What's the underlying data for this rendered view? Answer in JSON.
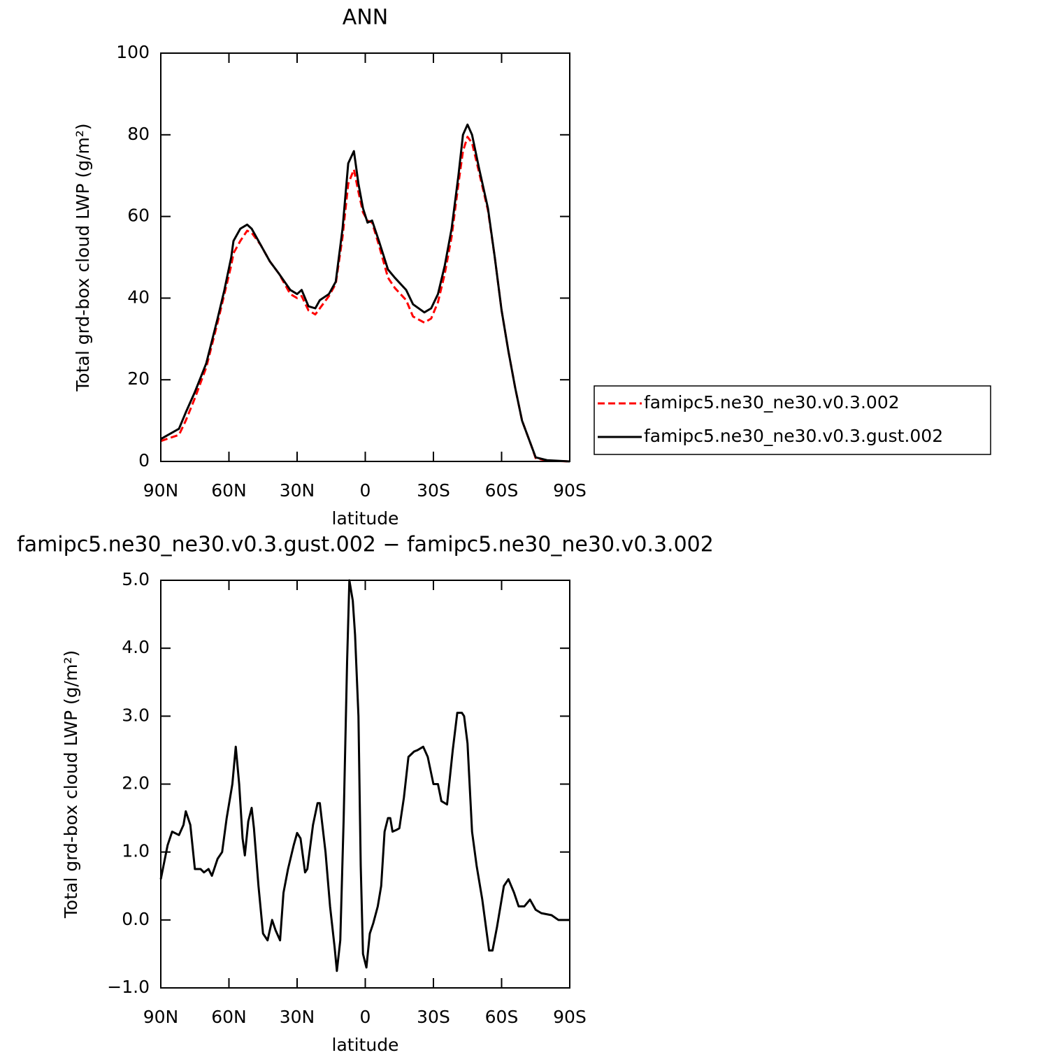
{
  "chart_data": [
    {
      "type": "line",
      "title": "ANN",
      "xlabel": "latitude",
      "ylabel": "Total grd-box cloud LWP (g/m²)",
      "x": [
        90,
        82,
        79,
        75,
        70,
        65,
        62,
        59,
        58,
        55,
        52,
        50,
        46,
        42,
        38,
        33,
        30,
        28,
        25,
        22,
        20,
        16,
        13,
        10,
        7.5,
        5,
        3,
        1,
        -1,
        -3,
        -6,
        -10,
        -13,
        -18,
        -21,
        -26,
        -29,
        -32,
        -35,
        -38,
        -41,
        -43,
        -45,
        -47,
        -50,
        -54,
        -57,
        -60,
        -63,
        -66,
        -69,
        -73,
        -75,
        -80,
        -90
      ],
      "series": [
        {
          "name": "famipc5.ne30_ne30.v0.3.002",
          "color": "#ff0000",
          "linestyle": "dashed",
          "values": [
            5,
            6.5,
            10,
            15.5,
            23,
            34,
            41,
            48,
            51,
            54,
            56.5,
            56,
            53,
            49,
            46,
            41,
            40,
            40.5,
            37,
            36,
            37.5,
            40.5,
            43.5,
            55,
            68,
            71.5,
            66,
            61,
            59,
            58.5,
            53,
            45,
            42.5,
            39.5,
            35.5,
            34,
            35,
            39,
            46,
            55,
            68,
            76,
            79.5,
            78,
            71,
            61.5,
            50,
            37,
            27,
            18,
            10,
            4,
            0.8,
            0.2,
            0
          ]
        },
        {
          "name": "famipc5.ne30_ne30.v0.3.gust.002",
          "color": "#000000",
          "linestyle": "solid",
          "values": [
            5.5,
            8,
            12,
            17,
            24,
            35,
            42,
            50,
            54,
            57,
            58,
            57,
            53,
            49,
            46,
            42,
            41,
            42,
            38,
            37.5,
            39.5,
            41,
            44,
            57,
            73,
            76,
            68,
            62,
            58.5,
            59,
            54,
            47,
            45,
            42,
            38.5,
            36.5,
            37.5,
            41,
            48,
            57,
            70,
            80,
            82.5,
            80,
            72,
            62,
            50,
            37,
            27,
            18,
            10,
            4,
            1,
            0.3,
            0
          ]
        }
      ],
      "xlim": [
        90,
        -90
      ],
      "xticks": [
        {
          "value": 90,
          "label": "90N"
        },
        {
          "value": 60,
          "label": "60N"
        },
        {
          "value": 30,
          "label": "30N"
        },
        0,
        {
          "value": -30,
          "label": "30S"
        },
        {
          "value": -60,
          "label": "60S"
        },
        {
          "value": -90,
          "label": "90S"
        }
      ],
      "ylim": [
        0,
        100
      ],
      "yticks": [
        0,
        20,
        40,
        60,
        80,
        100
      ],
      "legend": "right"
    },
    {
      "type": "line",
      "title": "famipc5.ne30_ne30.v0.3.gust.002 − famipc5.ne30_ne30.v0.3.002",
      "xlabel": "latitude",
      "ylabel": "Total grd-box cloud LWP (g/m²)",
      "x": [
        90,
        87,
        85,
        82,
        80,
        79,
        77,
        75,
        72.5,
        71,
        69,
        67.5,
        65,
        63,
        61,
        58.5,
        57,
        55.5,
        54,
        53,
        51.5,
        50,
        49,
        47,
        45,
        43,
        41,
        39.5,
        37.5,
        36,
        34,
        31.5,
        30,
        28.5,
        26.5,
        25.5,
        23,
        21,
        20,
        17.5,
        15.5,
        13.5,
        12.5,
        11,
        9.5,
        8,
        7,
        5.5,
        4.5,
        3,
        2,
        1,
        -0.5,
        -2,
        -3.5,
        -5.5,
        -7,
        -8.5,
        -10,
        -11,
        -12,
        -14,
        -15,
        -17,
        -19,
        -21.5,
        -23,
        -25.5,
        -27.5,
        -30,
        -32,
        -33.5,
        -36,
        -38.5,
        -40.5,
        -42.5,
        -43.5,
        -45,
        -47,
        -49,
        -51.5,
        -54.5,
        -56,
        -58,
        -61,
        -63,
        -65.5,
        -67.5,
        -70,
        -72.5,
        -75,
        -77.5,
        -82,
        -85,
        -90
      ],
      "series": [
        {
          "color": "#000000",
          "linestyle": "solid",
          "values": [
            0.6,
            1.1,
            1.3,
            1.25,
            1.4,
            1.6,
            1.4,
            0.75,
            0.75,
            0.7,
            0.75,
            0.65,
            0.9,
            1.0,
            1.5,
            2.0,
            2.55,
            2.0,
            1.2,
            0.95,
            1.45,
            1.65,
            1.35,
            0.5,
            -0.2,
            -0.3,
            0.0,
            -0.15,
            -0.3,
            0.4,
            0.75,
            1.1,
            1.28,
            1.2,
            0.7,
            0.75,
            1.4,
            1.72,
            1.72,
            1.0,
            0.2,
            -0.4,
            -0.75,
            -0.3,
            1.5,
            3.8,
            5.0,
            4.7,
            4.2,
            3.0,
            0.8,
            -0.5,
            -0.7,
            -0.2,
            -0.05,
            0.2,
            0.5,
            1.3,
            1.5,
            1.5,
            1.3,
            1.33,
            1.35,
            1.8,
            2.4,
            2.48,
            2.5,
            2.55,
            2.4,
            2.0,
            2.0,
            1.75,
            1.7,
            2.5,
            3.05,
            3.05,
            3.0,
            2.6,
            1.3,
            0.8,
            0.3,
            -0.45,
            -0.45,
            -0.1,
            0.5,
            0.6,
            0.4,
            0.2,
            0.2,
            0.3,
            0.15,
            0.1,
            0.07,
            0.0,
            0.0
          ]
        }
      ],
      "xlim": [
        90,
        -90
      ],
      "xticks": [
        {
          "value": 90,
          "label": "90N"
        },
        {
          "value": 60,
          "label": "60N"
        },
        {
          "value": 30,
          "label": "30N"
        },
        0,
        {
          "value": -30,
          "label": "30S"
        },
        {
          "value": -60,
          "label": "60S"
        },
        {
          "value": -90,
          "label": "90S"
        }
      ],
      "ylim": [
        -1,
        5
      ],
      "yticks": [
        {
          "value": -1,
          "label": "−1.0"
        },
        {
          "value": 0,
          "label": "0.0"
        },
        {
          "value": 1,
          "label": "1.0"
        },
        {
          "value": 2,
          "label": "2.0"
        },
        {
          "value": 3,
          "label": "3.0"
        },
        {
          "value": 4,
          "label": "4.0"
        },
        {
          "value": 5,
          "label": "5.0"
        }
      ]
    }
  ]
}
